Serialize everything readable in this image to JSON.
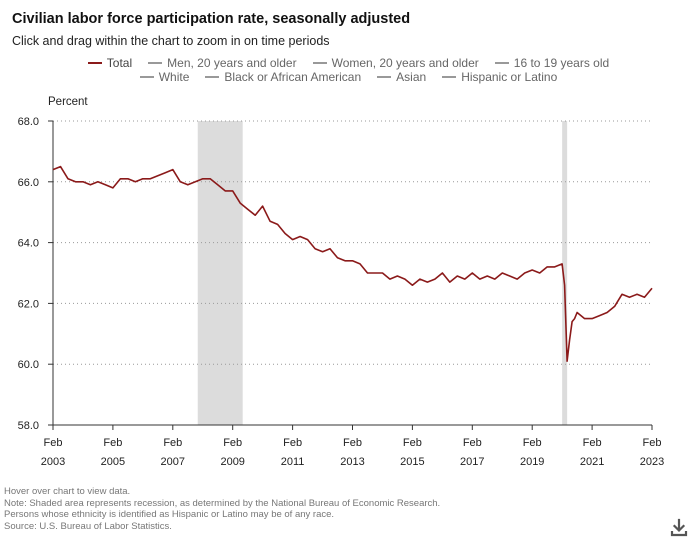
{
  "header": {
    "title": "Civilian labor force participation rate, seasonally adjusted",
    "subtitle": "Click and drag within the chart to zoom in on time periods"
  },
  "legend": {
    "row1": [
      {
        "label": "Total",
        "color": "#8b1a1a"
      },
      {
        "label": "Men, 20 years and older",
        "color": "#888888"
      },
      {
        "label": "Women, 20 years and older",
        "color": "#888888"
      },
      {
        "label": "16 to 19 years old",
        "color": "#888888"
      }
    ],
    "row2": [
      {
        "label": "White",
        "color": "#888888"
      },
      {
        "label": "Black or African American",
        "color": "#888888"
      },
      {
        "label": "Asian",
        "color": "#888888"
      },
      {
        "label": "Hispanic or Latino",
        "color": "#888888"
      }
    ]
  },
  "notes": [
    "Hover over chart to view data.",
    "Note: Shaded area represents recession, as determined by the National Bureau of Economic Research.",
    "Persons whose ethnicity is identified as Hispanic or Latino may be of any race.",
    "Source: U.S. Bureau of Labor Statistics."
  ],
  "download_icon": "download-icon",
  "chart_data": {
    "type": "line",
    "ylabel": "Percent",
    "ylim": [
      58.0,
      68.0
    ],
    "yticks": [
      "58.0",
      "60.0",
      "62.0",
      "64.0",
      "66.0",
      "68.0"
    ],
    "xlim": [
      "2003-02",
      "2023-02"
    ],
    "xticks": [
      {
        "month": "Feb",
        "year": "2003"
      },
      {
        "month": "Feb",
        "year": "2005"
      },
      {
        "month": "Feb",
        "year": "2007"
      },
      {
        "month": "Feb",
        "year": "2009"
      },
      {
        "month": "Feb",
        "year": "2011"
      },
      {
        "month": "Feb",
        "year": "2013"
      },
      {
        "month": "Feb",
        "year": "2015"
      },
      {
        "month": "Feb",
        "year": "2017"
      },
      {
        "month": "Feb",
        "year": "2019"
      },
      {
        "month": "Feb",
        "year": "2021"
      },
      {
        "month": "Feb",
        "year": "2023"
      }
    ],
    "grid": true,
    "recessions": [
      [
        "2007-12",
        "2009-06"
      ],
      [
        "2020-02",
        "2020-04"
      ]
    ],
    "series": [
      {
        "name": "Total",
        "color": "#8b1a1a",
        "x": [
          "2003-02",
          "2003-05",
          "2003-08",
          "2003-11",
          "2004-02",
          "2004-05",
          "2004-08",
          "2004-11",
          "2005-02",
          "2005-05",
          "2005-08",
          "2005-11",
          "2006-02",
          "2006-05",
          "2006-08",
          "2006-11",
          "2007-02",
          "2007-05",
          "2007-08",
          "2007-11",
          "2008-02",
          "2008-05",
          "2008-08",
          "2008-11",
          "2009-02",
          "2009-05",
          "2009-08",
          "2009-11",
          "2010-02",
          "2010-05",
          "2010-08",
          "2010-11",
          "2011-02",
          "2011-05",
          "2011-08",
          "2011-11",
          "2012-02",
          "2012-05",
          "2012-08",
          "2012-11",
          "2013-02",
          "2013-05",
          "2013-08",
          "2013-11",
          "2014-02",
          "2014-05",
          "2014-08",
          "2014-11",
          "2015-02",
          "2015-05",
          "2015-08",
          "2015-11",
          "2016-02",
          "2016-05",
          "2016-08",
          "2016-11",
          "2017-02",
          "2017-05",
          "2017-08",
          "2017-11",
          "2018-02",
          "2018-05",
          "2018-08",
          "2018-11",
          "2019-02",
          "2019-05",
          "2019-08",
          "2019-11",
          "2020-02",
          "2020-03",
          "2020-04",
          "2020-05",
          "2020-06",
          "2020-07",
          "2020-08",
          "2020-11",
          "2021-02",
          "2021-05",
          "2021-08",
          "2021-11",
          "2022-02",
          "2022-05",
          "2022-08",
          "2022-11",
          "2023-02"
        ],
        "values": [
          66.4,
          66.5,
          66.1,
          66.0,
          66.0,
          65.9,
          66.0,
          65.9,
          65.8,
          66.1,
          66.1,
          66.0,
          66.1,
          66.1,
          66.2,
          66.3,
          66.4,
          66.0,
          65.9,
          66.0,
          66.1,
          66.1,
          65.9,
          65.7,
          65.7,
          65.3,
          65.1,
          64.9,
          65.2,
          64.7,
          64.6,
          64.3,
          64.1,
          64.2,
          64.1,
          63.8,
          63.7,
          63.8,
          63.5,
          63.4,
          63.4,
          63.3,
          63.0,
          63.0,
          63.0,
          62.8,
          62.9,
          62.8,
          62.6,
          62.8,
          62.7,
          62.8,
          63.0,
          62.7,
          62.9,
          62.8,
          63.0,
          62.8,
          62.9,
          62.8,
          63.0,
          62.9,
          62.8,
          63.0,
          63.1,
          63.0,
          63.2,
          63.2,
          63.3,
          62.6,
          60.1,
          60.8,
          61.4,
          61.5,
          61.7,
          61.5,
          61.5,
          61.6,
          61.7,
          61.9,
          62.3,
          62.2,
          62.3,
          62.2,
          62.5
        ]
      }
    ]
  }
}
